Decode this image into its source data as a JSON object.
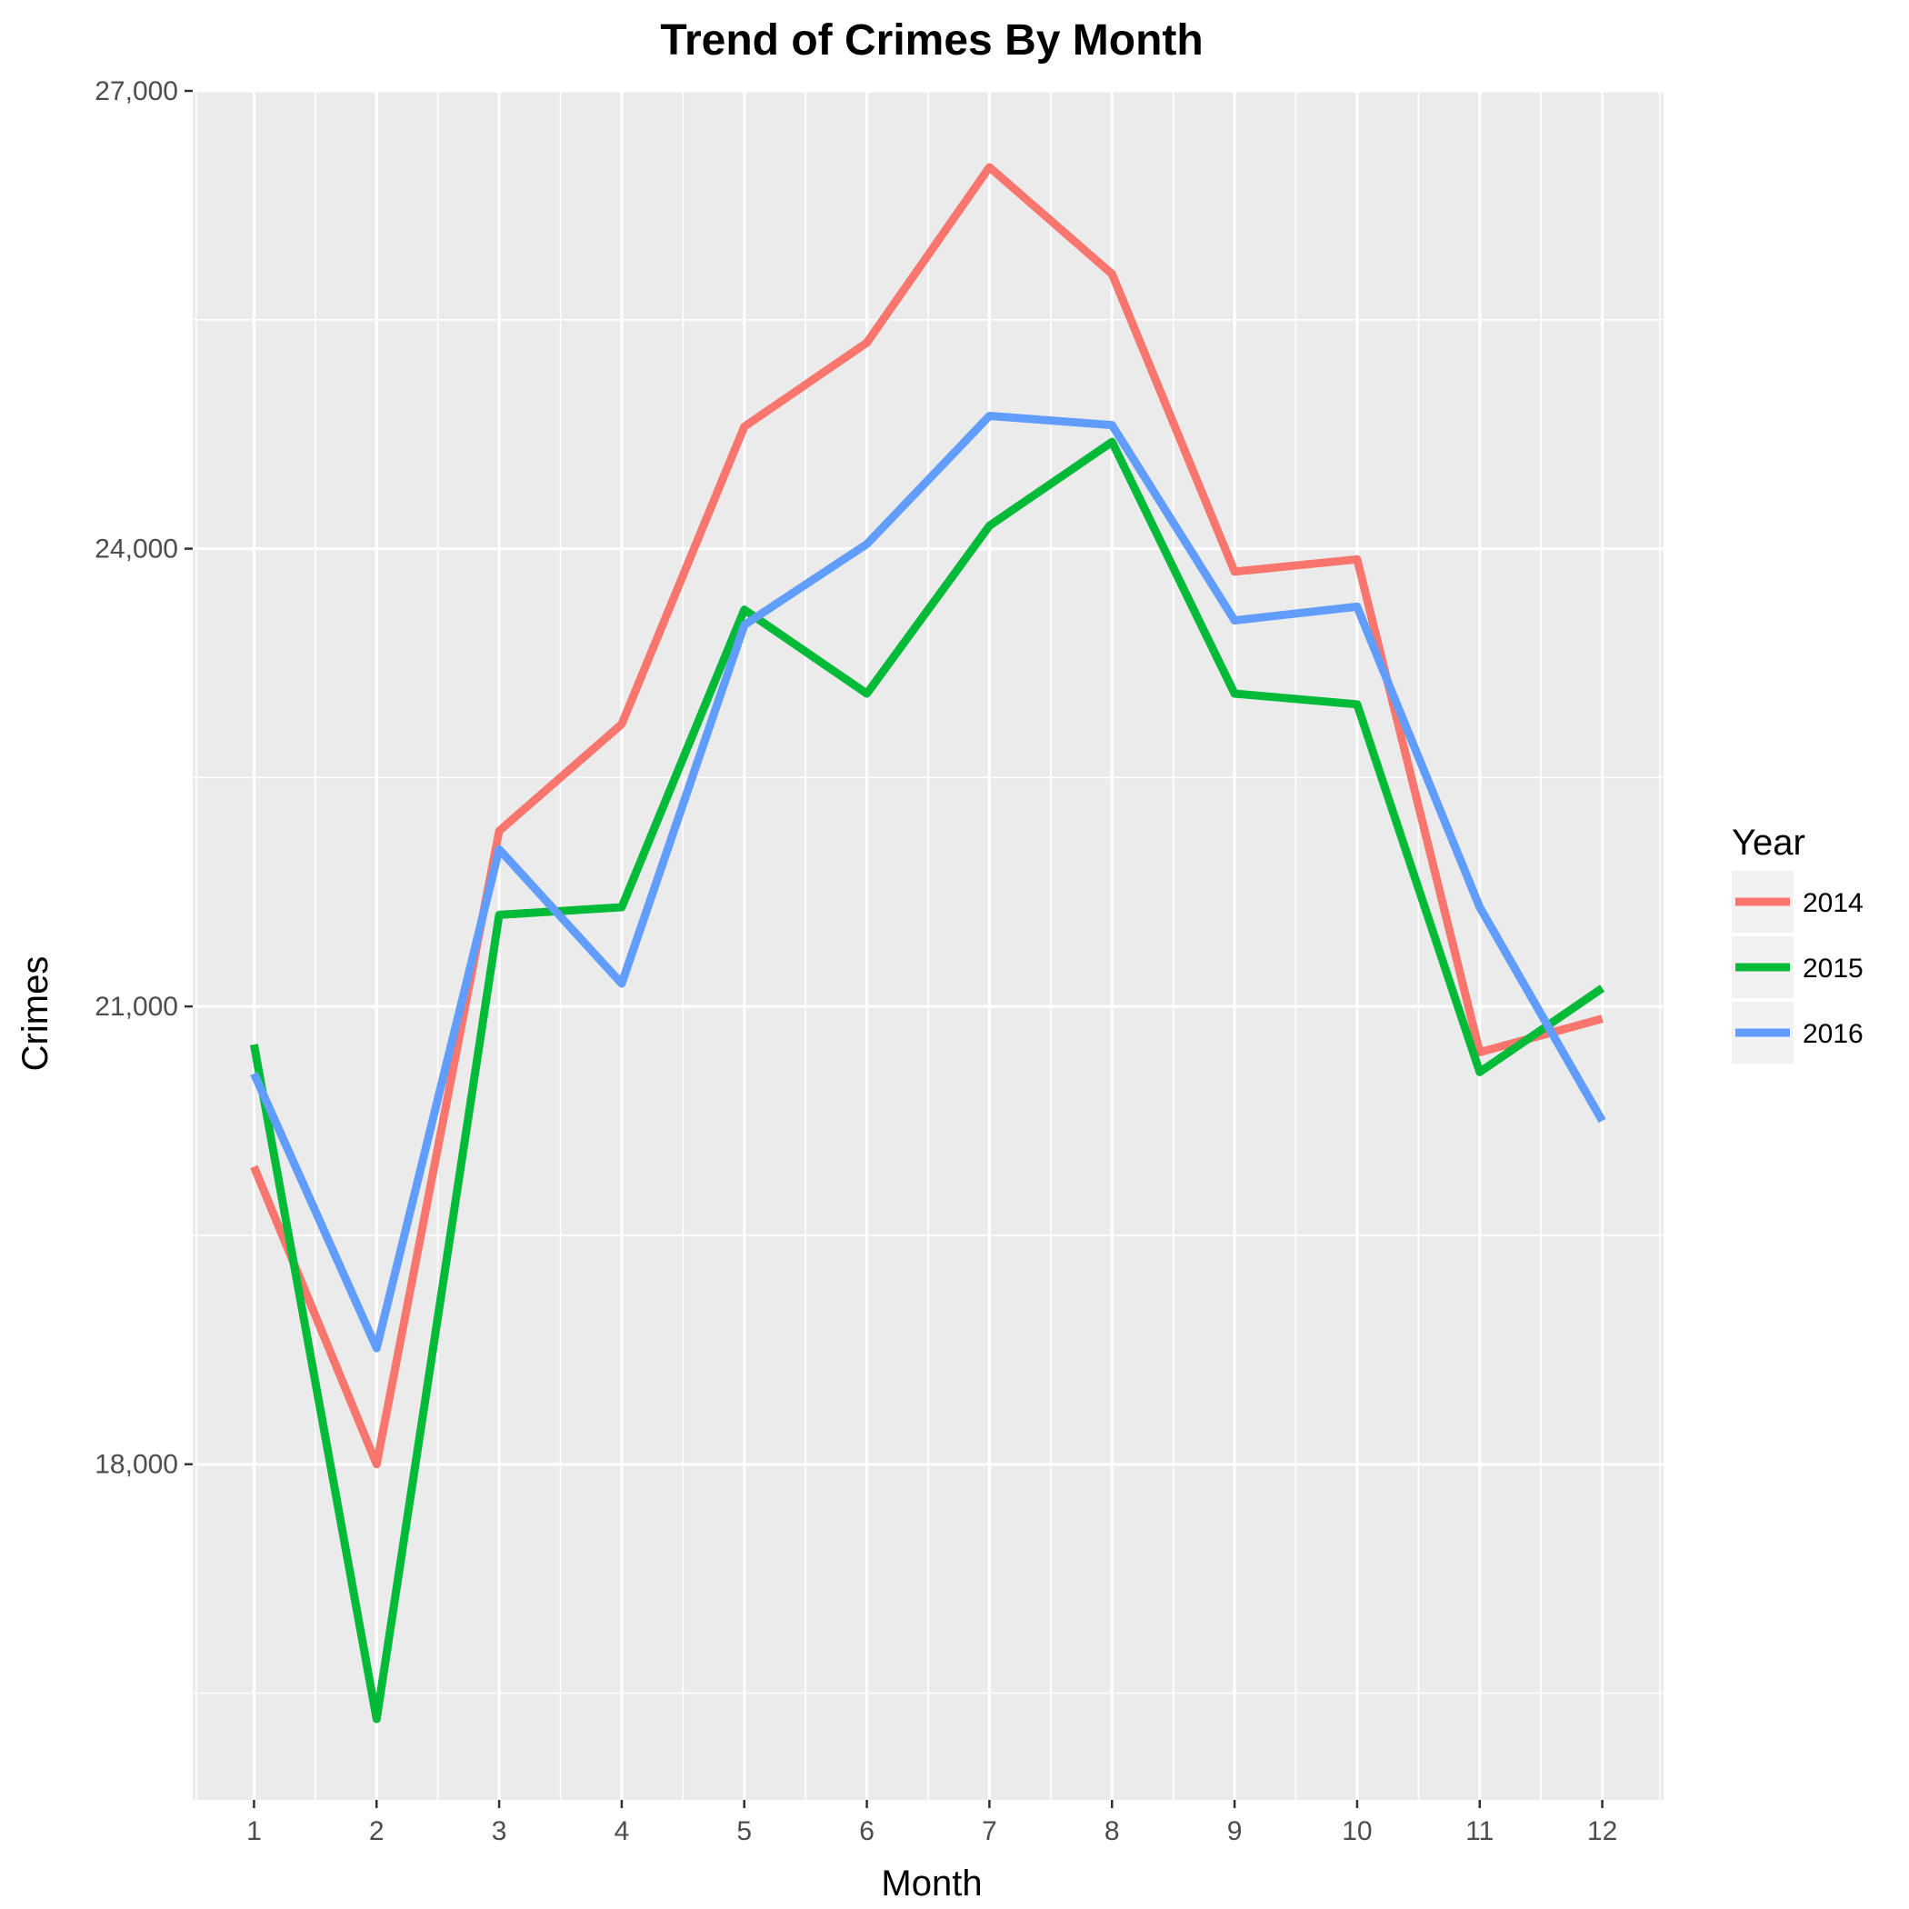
{
  "chart_data": {
    "type": "line",
    "title": "Trend of Crimes By Month",
    "xlabel": "Month",
    "ylabel": "Crimes",
    "x": [
      1,
      2,
      3,
      4,
      5,
      6,
      7,
      8,
      9,
      10,
      11,
      12
    ],
    "x_tick_labels": [
      "1",
      "2",
      "3",
      "4",
      "5",
      "6",
      "7",
      "8",
      "9",
      "10",
      "11",
      "12"
    ],
    "y_ticks": [
      18000,
      21000,
      24000,
      27000
    ],
    "y_tick_labels": [
      "18,000",
      "21,000",
      "24,000",
      "27,000"
    ],
    "xlim": [
      0.5,
      12.5
    ],
    "ylim": [
      15800,
      27000
    ],
    "grid": true,
    "legend": {
      "title": "Year",
      "position": "right"
    },
    "series": [
      {
        "name": "2014",
        "color": "#F8766D",
        "values": [
          19950,
          18000,
          22150,
          22850,
          24800,
          25350,
          26500,
          25800,
          23850,
          23930,
          20700,
          20920
        ]
      },
      {
        "name": "2015",
        "color": "#00BA38",
        "values": [
          20750,
          16330,
          21600,
          21650,
          23600,
          23050,
          24150,
          24700,
          23050,
          22980,
          20570,
          21120
        ]
      },
      {
        "name": "2016",
        "color": "#619CFF",
        "values": [
          20560,
          18760,
          22030,
          21150,
          23500,
          24030,
          24870,
          24810,
          23530,
          23620,
          21650,
          20250
        ]
      }
    ]
  }
}
